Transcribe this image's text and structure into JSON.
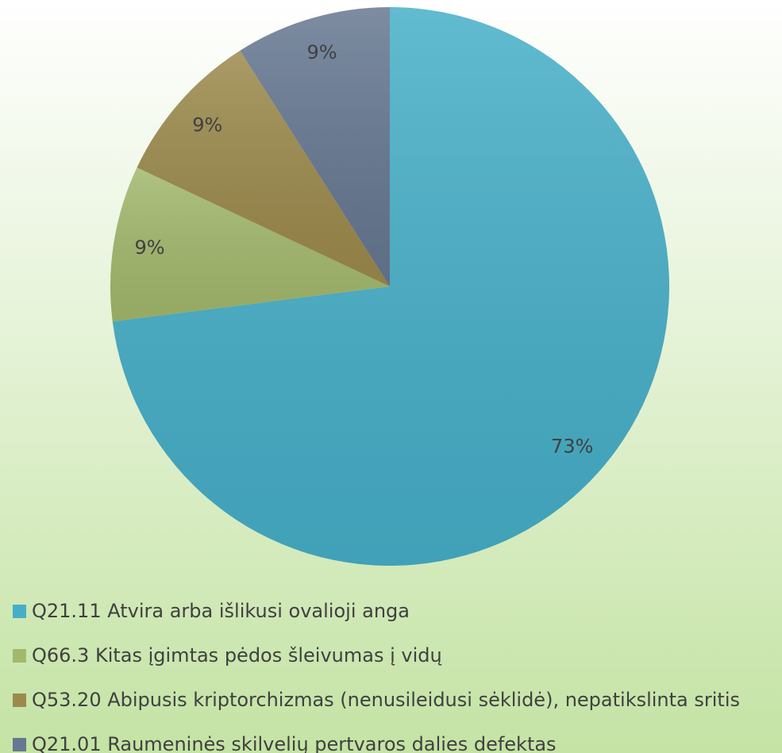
{
  "chart_data": {
    "type": "pie",
    "categories": [
      "Q21.11 Atvira arba išlikusi ovalioji anga",
      "Q66.3 Kitas įgimtas pėdos šleivumas į vidų",
      "Q53.20 Abipusis kriptorchizmas (nenusileidusi sėklidė), nepatikslinta sritis",
      "Q21.01 Raumeninės skilvelių pertvaros dalies defektas"
    ],
    "values": [
      73,
      9,
      9,
      9
    ],
    "value_labels": [
      "73%",
      "9%",
      "9%",
      "9%"
    ],
    "colors": [
      "#46afc8",
      "#a3b86c",
      "#9c8a4c",
      "#667891"
    ],
    "legend": "bottom"
  }
}
